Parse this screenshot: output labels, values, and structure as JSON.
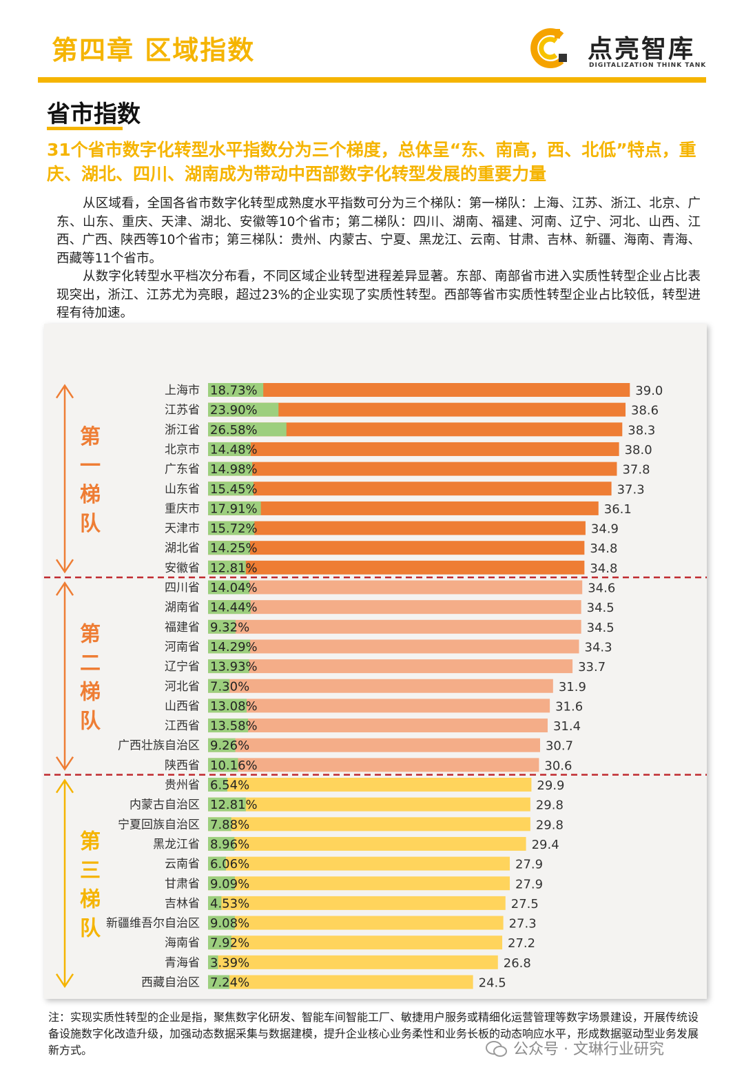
{
  "header": {
    "chapter": "第四章  区域指数",
    "logo_name": "点亮智库",
    "logo_sub": "DIGITALIZATION THINK TANK",
    "accent": "#f5b400"
  },
  "section_title": "省市指数",
  "headline": "31个省市数字化转型水平指数分为三个梯度，总体呈“东、南高，西、北低”特点，重庆、湖北、四川、湖南成为带动中西部数字化转型发展的重要力量",
  "body": {
    "p1": "从区域看，全国各省市数字化转型成熟度水平指数可分为三个梯队：第一梯队：上海、江苏、浙江、北京、广东、山东、重庆、天津、湖北、安徽等10个省市；第二梯队：四川、湖南、福建、河南、辽宁、河北、山西、江西、广西、陕西等10个省市；第三梯队：贵州、内蒙古、宁夏、黑龙江、云南、甘肃、吉林、新疆、海南、青海、西藏等11个省市。",
    "p2": "从数字化转型水平档次分布看，不同区域企业转型进程差异显著。东部、南部省市进入实质性转型企业占比表现突出，浙江、江苏尤为亮眼，超过23%的企业实现了实质性转型。西部等省市实质性转型企业占比较低，转型进程有待加速。"
  },
  "chart_data": {
    "type": "bar",
    "orientation": "horizontal",
    "xlim": [
      0,
      40
    ],
    "colors": {
      "share": "#9dcf7e",
      "tier1": "#ee7d34",
      "tier2": "#f4ad88",
      "tier3": "#ffd45c",
      "divider": "#c0282d",
      "tier1_label": "#ee7d34",
      "tier2_label": "#ee7d34",
      "tier3_label": "#f5b400"
    },
    "tiers": [
      {
        "label": "第一梯队",
        "chars": [
          "第",
          "一",
          "梯",
          "队"
        ],
        "start": 0,
        "end": 9
      },
      {
        "label": "第二梯队",
        "chars": [
          "第",
          "二",
          "梯",
          "队"
        ],
        "start": 10,
        "end": 19
      },
      {
        "label": "第三梯队",
        "chars": [
          "第",
          "三",
          "梯",
          "队"
        ],
        "start": 20,
        "end": 30
      }
    ],
    "rows": [
      {
        "name": "上海市",
        "share": "18.73%",
        "share_value": 18.73,
        "index": 39.0,
        "index_label": "39.0",
        "tier": 1
      },
      {
        "name": "江苏省",
        "share": "23.90%",
        "share_value": 23.9,
        "index": 38.6,
        "index_label": "38.6",
        "tier": 1
      },
      {
        "name": "浙江省",
        "share": "26.58%",
        "share_value": 26.58,
        "index": 38.3,
        "index_label": "38.3",
        "tier": 1
      },
      {
        "name": "北京市",
        "share": "14.48%",
        "share_value": 14.48,
        "index": 38.0,
        "index_label": "38.0",
        "tier": 1
      },
      {
        "name": "广东省",
        "share": "14.98%",
        "share_value": 14.98,
        "index": 37.8,
        "index_label": "37.8",
        "tier": 1
      },
      {
        "name": "山东省",
        "share": "15.45%",
        "share_value": 15.45,
        "index": 37.3,
        "index_label": "37.3",
        "tier": 1
      },
      {
        "name": "重庆市",
        "share": "17.91%",
        "share_value": 17.91,
        "index": 36.1,
        "index_label": "36.1",
        "tier": 1
      },
      {
        "name": "天津市",
        "share": "15.72%",
        "share_value": 15.72,
        "index": 34.9,
        "index_label": "34.9",
        "tier": 1
      },
      {
        "name": "湖北省",
        "share": "14.25%",
        "share_value": 14.25,
        "index": 34.8,
        "index_label": "34.8",
        "tier": 1
      },
      {
        "name": "安徽省",
        "share": "12.81%",
        "share_value": 12.81,
        "index": 34.8,
        "index_label": "34.8",
        "tier": 1
      },
      {
        "name": "四川省",
        "share": "14.04%",
        "share_value": 14.04,
        "index": 34.6,
        "index_label": "34.6",
        "tier": 2
      },
      {
        "name": "湖南省",
        "share": "14.44%",
        "share_value": 14.44,
        "index": 34.5,
        "index_label": "34.5",
        "tier": 2
      },
      {
        "name": "福建省",
        "share": "9.32%",
        "share_value": 9.32,
        "index": 34.5,
        "index_label": "34.5",
        "tier": 2
      },
      {
        "name": "河南省",
        "share": "14.29%",
        "share_value": 14.29,
        "index": 34.3,
        "index_label": "34.3",
        "tier": 2
      },
      {
        "name": "辽宁省",
        "share": "13.93%",
        "share_value": 13.93,
        "index": 33.7,
        "index_label": "33.7",
        "tier": 2
      },
      {
        "name": "河北省",
        "share": "7.30%",
        "share_value": 7.3,
        "index": 31.9,
        "index_label": "31.9",
        "tier": 2
      },
      {
        "name": "山西省",
        "share": "13.08%",
        "share_value": 13.08,
        "index": 31.6,
        "index_label": "31.6",
        "tier": 2
      },
      {
        "name": "江西省",
        "share": "13.58%",
        "share_value": 13.58,
        "index": 31.4,
        "index_label": "31.4",
        "tier": 2
      },
      {
        "name": "广西壮族自治区",
        "share": "9.26%",
        "share_value": 9.26,
        "index": 30.7,
        "index_label": "30.7",
        "tier": 2
      },
      {
        "name": "陕西省",
        "share": "10.16%",
        "share_value": 10.16,
        "index": 30.6,
        "index_label": "30.6",
        "tier": 2
      },
      {
        "name": "贵州省",
        "share": "6.54%",
        "share_value": 6.54,
        "index": 29.9,
        "index_label": "29.9",
        "tier": 3
      },
      {
        "name": "内蒙古自治区",
        "share": "12.81%",
        "share_value": 12.81,
        "index": 29.8,
        "index_label": "29.8",
        "tier": 3
      },
      {
        "name": "宁夏回族自治区",
        "share": "7.88%",
        "share_value": 7.88,
        "index": 29.8,
        "index_label": "29.8",
        "tier": 3
      },
      {
        "name": "黑龙江省",
        "share": "8.96%",
        "share_value": 8.96,
        "index": 29.4,
        "index_label": "29.4",
        "tier": 3
      },
      {
        "name": "云南省",
        "share": "6.06%",
        "share_value": 6.06,
        "index": 27.9,
        "index_label": "27.9",
        "tier": 3
      },
      {
        "name": "甘肃省",
        "share": "9.09%",
        "share_value": 9.09,
        "index": 27.9,
        "index_label": "27.9",
        "tier": 3
      },
      {
        "name": "吉林省",
        "share": "4.53%",
        "share_value": 4.53,
        "index": 27.5,
        "index_label": "27.5",
        "tier": 3
      },
      {
        "name": "新疆维吾尔自治区",
        "share": "9.08%",
        "share_value": 9.08,
        "index": 27.3,
        "index_label": "27.3",
        "tier": 3
      },
      {
        "name": "海南省",
        "share": "7.92%",
        "share_value": 7.92,
        "index": 27.2,
        "index_label": "27.2",
        "tier": 3
      },
      {
        "name": "青海省",
        "share": "3.39%",
        "share_value": 3.39,
        "index": 26.8,
        "index_label": "26.8",
        "tier": 3
      },
      {
        "name": "西藏自治区",
        "share": "7.24%",
        "share_value": 7.24,
        "index": 24.5,
        "index_label": "24.5",
        "tier": 3
      }
    ]
  },
  "footnote": "注：实现实质性转型的企业是指，聚焦数字化研发、智能车间智能工厂、敏捷用户服务或精细化运营管理等数字场景建设，开展传统设备设施数字化改造升级，加强动态数据采集与数据建模，提升企业核心业务柔性和业务长板的动态响应水平，形成数据驱动型业务发展新方式。",
  "watermark": "公众号 · 文琳行业研究"
}
